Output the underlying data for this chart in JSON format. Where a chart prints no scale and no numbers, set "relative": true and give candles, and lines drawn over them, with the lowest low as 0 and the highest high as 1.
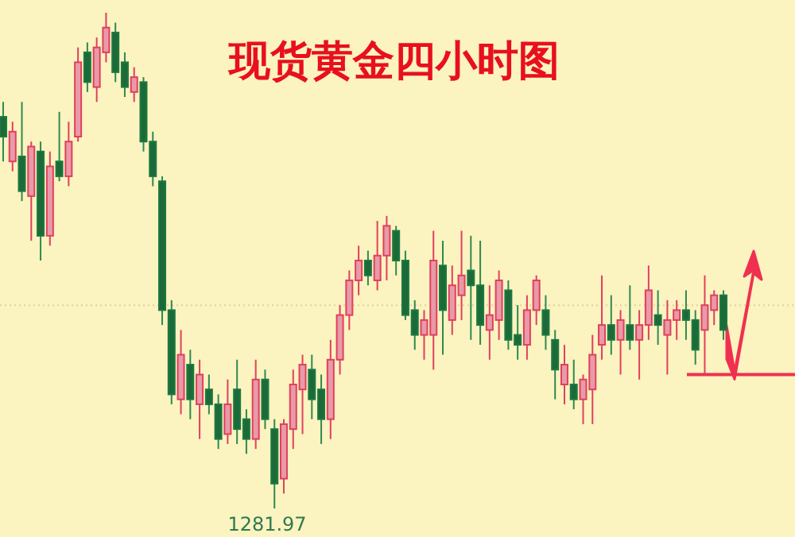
{
  "chart_data": {
    "type": "candlestick",
    "title": "现货黄金四小时图",
    "relative": true,
    "categories": [
      null,
      null,
      null,
      null,
      null,
      null,
      null,
      null,
      null,
      null,
      null,
      null,
      null,
      null,
      null,
      null,
      null,
      null,
      null,
      null,
      null,
      null,
      null,
      null,
      null,
      null,
      null,
      null,
      null,
      null,
      null,
      null,
      null,
      null,
      null,
      null,
      null,
      null,
      null,
      null,
      null,
      null,
      null,
      null,
      null,
      null,
      null,
      null,
      null,
      null,
      null,
      null,
      null,
      null,
      null,
      null,
      null,
      null,
      null,
      null,
      null,
      null,
      null,
      null,
      null,
      null,
      null,
      null,
      null,
      null,
      null,
      null,
      null,
      null,
      null,
      null,
      null,
      null
    ],
    "ohlc": [
      [
        0.79,
        0.82,
        0.7,
        0.75
      ],
      [
        0.7,
        0.78,
        0.68,
        0.76
      ],
      [
        0.71,
        0.82,
        0.62,
        0.64
      ],
      [
        0.63,
        0.74,
        0.54,
        0.73
      ],
      [
        0.72,
        0.74,
        0.5,
        0.55
      ],
      [
        0.55,
        0.72,
        0.53,
        0.69
      ],
      [
        0.7,
        0.8,
        0.66,
        0.67
      ],
      [
        0.67,
        0.78,
        0.65,
        0.74
      ],
      [
        0.75,
        0.93,
        0.74,
        0.9
      ],
      [
        0.92,
        0.94,
        0.84,
        0.86
      ],
      [
        0.85,
        0.95,
        0.82,
        0.93
      ],
      [
        0.92,
        1.0,
        0.9,
        0.97
      ],
      [
        0.96,
        0.98,
        0.86,
        0.88
      ],
      [
        0.9,
        0.92,
        0.83,
        0.85
      ],
      [
        0.84,
        0.89,
        0.82,
        0.87
      ],
      [
        0.86,
        0.87,
        0.72,
        0.74
      ],
      [
        0.74,
        0.76,
        0.65,
        0.67
      ],
      [
        0.66,
        0.67,
        0.37,
        0.4
      ],
      [
        0.4,
        0.42,
        0.21,
        0.23
      ],
      [
        0.22,
        0.36,
        0.19,
        0.31
      ],
      [
        0.29,
        0.32,
        0.18,
        0.22
      ],
      [
        0.21,
        0.3,
        0.14,
        0.27
      ],
      [
        0.24,
        0.27,
        0.19,
        0.21
      ],
      [
        0.21,
        0.23,
        0.12,
        0.14
      ],
      [
        0.15,
        0.26,
        0.13,
        0.21
      ],
      [
        0.24,
        0.3,
        0.13,
        0.16
      ],
      [
        0.18,
        0.2,
        0.11,
        0.14
      ],
      [
        0.14,
        0.3,
        0.12,
        0.26
      ],
      [
        0.26,
        0.28,
        0.16,
        0.18
      ],
      [
        0.16,
        0.18,
        0.0,
        0.05
      ],
      [
        0.06,
        0.18,
        0.03,
        0.17
      ],
      [
        0.16,
        0.28,
        0.12,
        0.25
      ],
      [
        0.24,
        0.31,
        0.15,
        0.29
      ],
      [
        0.28,
        0.31,
        0.18,
        0.22
      ],
      [
        0.24,
        0.27,
        0.13,
        0.18
      ],
      [
        0.18,
        0.34,
        0.14,
        0.3
      ],
      [
        0.3,
        0.41,
        0.27,
        0.39
      ],
      [
        0.39,
        0.48,
        0.36,
        0.46
      ],
      [
        0.46,
        0.53,
        0.43,
        0.5
      ],
      [
        0.5,
        0.52,
        0.45,
        0.47
      ],
      [
        0.46,
        0.58,
        0.44,
        0.51
      ],
      [
        0.51,
        0.59,
        0.46,
        0.57
      ],
      [
        0.56,
        0.57,
        0.47,
        0.5
      ],
      [
        0.5,
        0.52,
        0.38,
        0.39
      ],
      [
        0.4,
        0.42,
        0.32,
        0.35
      ],
      [
        0.35,
        0.4,
        0.3,
        0.38
      ],
      [
        0.35,
        0.56,
        0.28,
        0.5
      ],
      [
        0.49,
        0.54,
        0.31,
        0.4
      ],
      [
        0.38,
        0.49,
        0.35,
        0.45
      ],
      [
        0.43,
        0.56,
        0.38,
        0.47
      ],
      [
        0.48,
        0.55,
        0.34,
        0.45
      ],
      [
        0.45,
        0.54,
        0.33,
        0.37
      ],
      [
        0.36,
        0.45,
        0.3,
        0.39
      ],
      [
        0.38,
        0.48,
        0.34,
        0.46
      ],
      [
        0.44,
        0.46,
        0.32,
        0.34
      ],
      [
        0.35,
        0.41,
        0.3,
        0.33
      ],
      [
        0.33,
        0.43,
        0.3,
        0.4
      ],
      [
        0.4,
        0.47,
        0.37,
        0.46
      ],
      [
        0.4,
        0.43,
        0.32,
        0.35
      ],
      [
        0.34,
        0.36,
        0.22,
        0.28
      ],
      [
        0.25,
        0.33,
        0.21,
        0.29
      ],
      [
        0.25,
        0.3,
        0.2,
        0.22
      ],
      [
        0.22,
        0.27,
        0.17,
        0.26
      ],
      [
        0.24,
        0.35,
        0.17,
        0.31
      ],
      [
        0.33,
        0.47,
        0.3,
        0.37
      ],
      [
        0.37,
        0.43,
        0.31,
        0.34
      ],
      [
        0.34,
        0.4,
        0.27,
        0.38
      ],
      [
        0.37,
        0.45,
        0.32,
        0.34
      ],
      [
        0.34,
        0.4,
        0.26,
        0.37
      ],
      [
        0.37,
        0.49,
        0.34,
        0.44
      ],
      [
        0.39,
        0.44,
        0.33,
        0.37
      ],
      [
        0.35,
        0.42,
        0.27,
        0.38
      ],
      [
        0.38,
        0.42,
        0.34,
        0.4
      ],
      [
        0.4,
        0.44,
        0.34,
        0.38
      ],
      [
        0.38,
        0.4,
        0.29,
        0.32
      ],
      [
        0.36,
        0.47,
        0.27,
        0.41
      ],
      [
        0.4,
        0.44,
        0.37,
        0.43
      ],
      [
        0.43,
        0.44,
        0.34,
        0.36
      ]
    ],
    "ref_lines": [
      {
        "axis": "y",
        "value": 0.41,
        "color": "#e3cfa2",
        "line_style": "dotted"
      }
    ],
    "annotations": [
      {
        "text": "1281.97",
        "y": 0
      }
    ]
  }
}
